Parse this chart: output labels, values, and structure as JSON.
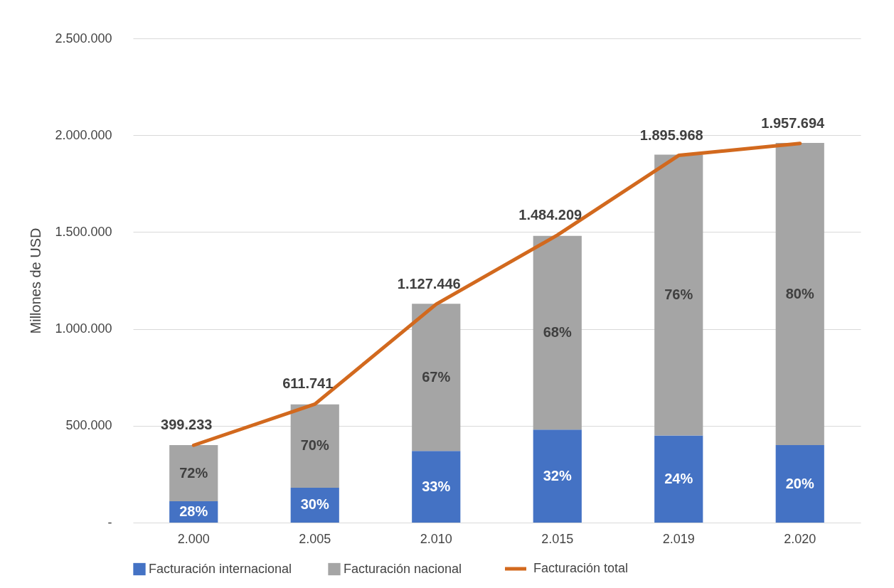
{
  "chart_data": {
    "type": "bar",
    "stacked": true,
    "ylabel": "Millones de USD",
    "categories": [
      "2.000",
      "2.005",
      "2.010",
      "2.015",
      "2.019",
      "2.020"
    ],
    "series": [
      {
        "name": "Facturación internacional",
        "color": "#4472c4",
        "values": [
          110000,
          180000,
          370000,
          480000,
          450000,
          400000
        ]
      },
      {
        "name": "Facturación nacional",
        "color": "#a5a5a5",
        "values": [
          290000,
          430000,
          760000,
          1000000,
          1450000,
          1560000
        ]
      },
      {
        "name": "Facturación total",
        "type": "line",
        "color": "#d2691e",
        "values": [
          399233,
          611741,
          1127446,
          1484209,
          1895968,
          1957694
        ],
        "value_labels": [
          "399.233",
          "611.741",
          "1.127.446",
          "1.484.209",
          "1.895.968",
          "1.957.694"
        ]
      }
    ],
    "annotations": [
      "28%",
      "30%",
      "33%",
      "32%",
      "24%",
      "20%",
      "72%",
      "70%",
      "67%",
      "68%",
      "76%",
      "80%"
    ],
    "ylim": [
      0,
      2500000
    ],
    "yticks": [
      {
        "value": 0,
        "label": "-"
      },
      {
        "value": 500000,
        "label": "500.000"
      },
      {
        "value": 1000000,
        "label": "1.000.000"
      },
      {
        "value": 1500000,
        "label": "1.500.000"
      },
      {
        "value": 2000000,
        "label": "2.000.000"
      },
      {
        "value": 2500000,
        "label": "2.500.000"
      }
    ],
    "grid": "y",
    "legend": "bottom"
  }
}
